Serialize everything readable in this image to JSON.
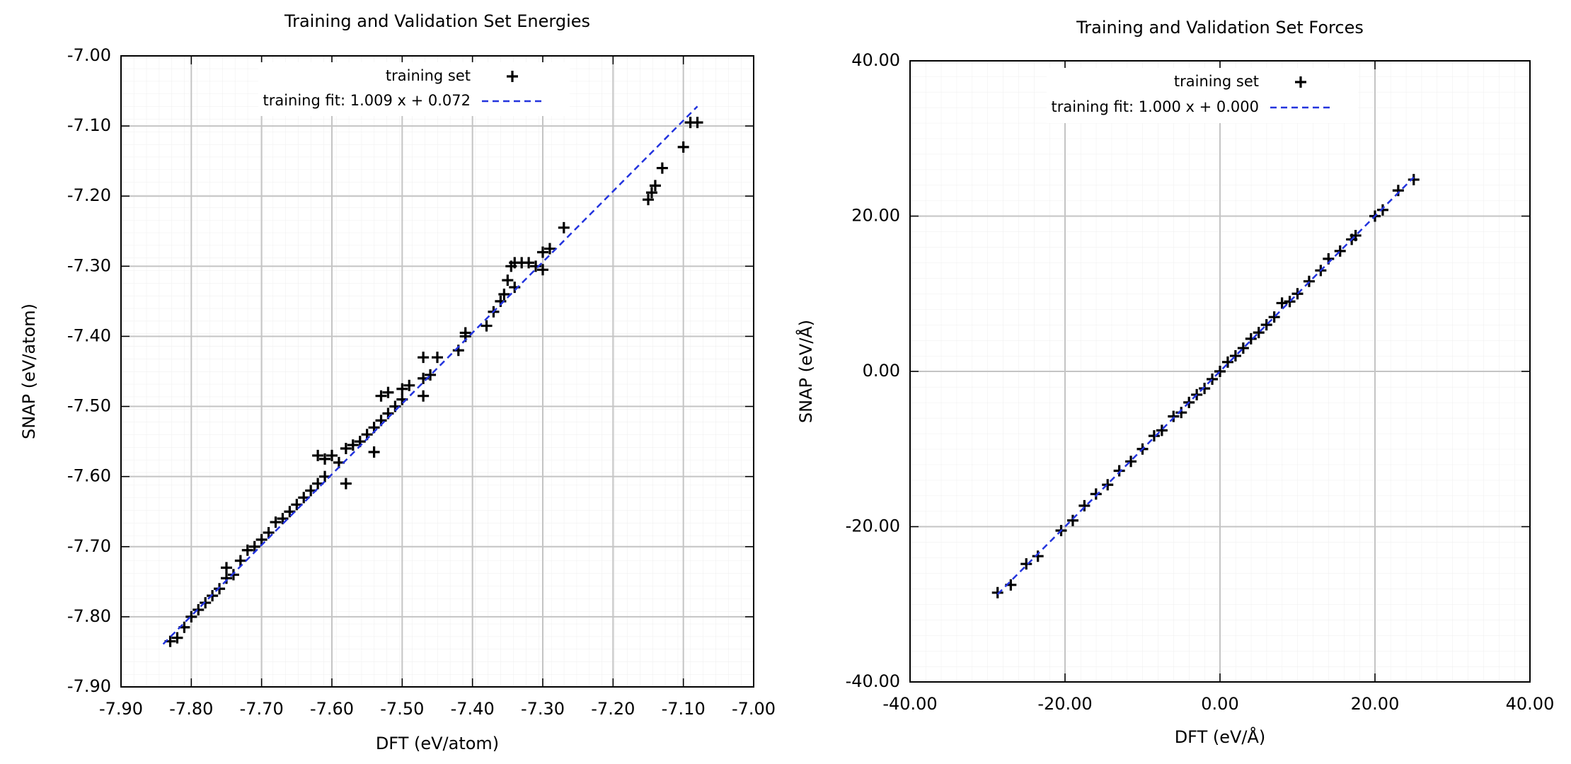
{
  "chart_data": [
    {
      "type": "scatter",
      "title": "Training and Validation Set Energies",
      "x_label": "DFT (eV/atom)",
      "y_label": "SNAP (eV/atom)",
      "xlim": [
        -7.9,
        -7.0
      ],
      "ylim": [
        -7.9,
        -7.0
      ],
      "xticks": [
        {
          "value": -7.9,
          "label": "-7.90"
        },
        {
          "value": -7.8,
          "label": "-7.80"
        },
        {
          "value": -7.7,
          "label": "-7.70"
        },
        {
          "value": -7.6,
          "label": "-7.60"
        },
        {
          "value": -7.5,
          "label": "-7.50"
        },
        {
          "value": -7.4,
          "label": "-7.40"
        },
        {
          "value": -7.3,
          "label": "-7.30"
        },
        {
          "value": -7.2,
          "label": "-7.20"
        },
        {
          "value": -7.1,
          "label": "-7.10"
        },
        {
          "value": -7.0,
          "label": "-7.00"
        }
      ],
      "yticks": [
        {
          "value": -7.9,
          "label": "-7.90"
        },
        {
          "value": -7.8,
          "label": "-7.80"
        },
        {
          "value": -7.7,
          "label": "-7.70"
        },
        {
          "value": -7.6,
          "label": "-7.60"
        },
        {
          "value": -7.5,
          "label": "-7.50"
        },
        {
          "value": -7.4,
          "label": "-7.40"
        },
        {
          "value": -7.3,
          "label": "-7.30"
        },
        {
          "value": -7.2,
          "label": "-7.20"
        },
        {
          "value": -7.1,
          "label": "-7.10"
        },
        {
          "value": -7.0,
          "label": "-7.00"
        }
      ],
      "grid": true,
      "legend": "top",
      "series": [
        {
          "name": "training set",
          "color": "#000000",
          "marker": "plus",
          "x": [
            -7.83,
            -7.82,
            -7.81,
            -7.8,
            -7.79,
            -7.78,
            -7.77,
            -7.76,
            -7.75,
            -7.75,
            -7.74,
            -7.73,
            -7.72,
            -7.71,
            -7.7,
            -7.69,
            -7.68,
            -7.67,
            -7.66,
            -7.65,
            -7.64,
            -7.63,
            -7.62,
            -7.61,
            -7.61,
            -7.62,
            -7.6,
            -7.59,
            -7.58,
            -7.57,
            -7.56,
            -7.55,
            -7.54,
            -7.53,
            -7.52,
            -7.51,
            -7.5,
            -7.53,
            -7.52,
            -7.5,
            -7.49,
            -7.47,
            -7.46,
            -7.47,
            -7.45,
            -7.42,
            -7.41,
            -7.41,
            -7.38,
            -7.37,
            -7.36,
            -7.355,
            -7.35,
            -7.345,
            -7.34,
            -7.33,
            -7.32,
            -7.31,
            -7.3,
            -7.3,
            -7.29,
            -7.27,
            -7.15,
            -7.145,
            -7.14,
            -7.13,
            -7.1,
            -7.09,
            -7.08,
            -7.54,
            -7.58,
            -7.47,
            -7.34
          ],
          "y": [
            -7.835,
            -7.83,
            -7.815,
            -7.8,
            -7.79,
            -7.78,
            -7.77,
            -7.76,
            -7.745,
            -7.73,
            -7.74,
            -7.72,
            -7.705,
            -7.7,
            -7.69,
            -7.68,
            -7.665,
            -7.66,
            -7.65,
            -7.64,
            -7.63,
            -7.62,
            -7.61,
            -7.6,
            -7.575,
            -7.57,
            -7.57,
            -7.58,
            -7.56,
            -7.555,
            -7.55,
            -7.54,
            -7.53,
            -7.52,
            -7.51,
            -7.5,
            -7.49,
            -7.485,
            -7.48,
            -7.475,
            -7.47,
            -7.46,
            -7.455,
            -7.43,
            -7.43,
            -7.42,
            -7.4,
            -7.395,
            -7.385,
            -7.365,
            -7.35,
            -7.34,
            -7.32,
            -7.3,
            -7.295,
            -7.295,
            -7.295,
            -7.3,
            -7.305,
            -7.28,
            -7.275,
            -7.245,
            -7.205,
            -7.195,
            -7.185,
            -7.16,
            -7.13,
            -7.095,
            -7.095,
            -7.565,
            -7.61,
            -7.485,
            -7.33
          ]
        },
        {
          "name": "training fit: 1.009 x + 0.072",
          "color": "#2233dd",
          "line": "dashed",
          "x": [
            -7.84,
            -7.08
          ],
          "y": [
            -7.839,
            -7.072
          ]
        }
      ]
    },
    {
      "type": "scatter",
      "title": "Training and Validation Set Forces",
      "x_label": "DFT (eV/Å)",
      "y_label": "SNAP (eV/Å)",
      "xlim": [
        -40,
        40
      ],
      "ylim": [
        -40,
        40
      ],
      "xticks": [
        {
          "value": -40,
          "label": "-40.00"
        },
        {
          "value": -20,
          "label": "-20.00"
        },
        {
          "value": 0,
          "label": "0.00"
        },
        {
          "value": 20,
          "label": "20.00"
        },
        {
          "value": 40,
          "label": "40.00"
        }
      ],
      "yticks": [
        {
          "value": -40,
          "label": "-40.00"
        },
        {
          "value": -20,
          "label": "-20.00"
        },
        {
          "value": 0,
          "label": "0.00"
        },
        {
          "value": 20,
          "label": "20.00"
        },
        {
          "value": 40,
          "label": "40.00"
        }
      ],
      "grid": true,
      "legend": "top",
      "series": [
        {
          "name": "training set",
          "color": "#000000",
          "marker": "plus",
          "x": [
            -28.7,
            -27,
            -25,
            -23.5,
            -20.5,
            -19,
            -17.5,
            -16,
            -14.5,
            -13,
            -11.5,
            -10,
            -8.5,
            -7.5,
            -6,
            -5,
            -4,
            -3,
            -2,
            -1,
            0,
            1,
            2,
            3,
            4,
            5,
            6,
            7,
            8,
            9,
            10,
            11.5,
            13,
            14,
            15.5,
            17,
            17.5,
            20,
            21,
            23,
            25
          ],
          "y": [
            -28.5,
            -27.5,
            -24.8,
            -23.8,
            -20.5,
            -19.2,
            -17.3,
            -15.8,
            -14.6,
            -12.8,
            -11.6,
            -10,
            -8.3,
            -7.6,
            -5.8,
            -5.3,
            -4,
            -3,
            -2.2,
            -1,
            0,
            1.2,
            2,
            3,
            4.2,
            5,
            6,
            7,
            8.8,
            9,
            10,
            11.6,
            13,
            14.5,
            15.5,
            17,
            17.5,
            20,
            20.8,
            23.3,
            24.7
          ]
        },
        {
          "name": "training fit: 1.000 x + 0.000",
          "color": "#2233dd",
          "line": "dashed",
          "x": [
            -28.7,
            25
          ],
          "y": [
            -28.7,
            25
          ]
        }
      ]
    }
  ]
}
